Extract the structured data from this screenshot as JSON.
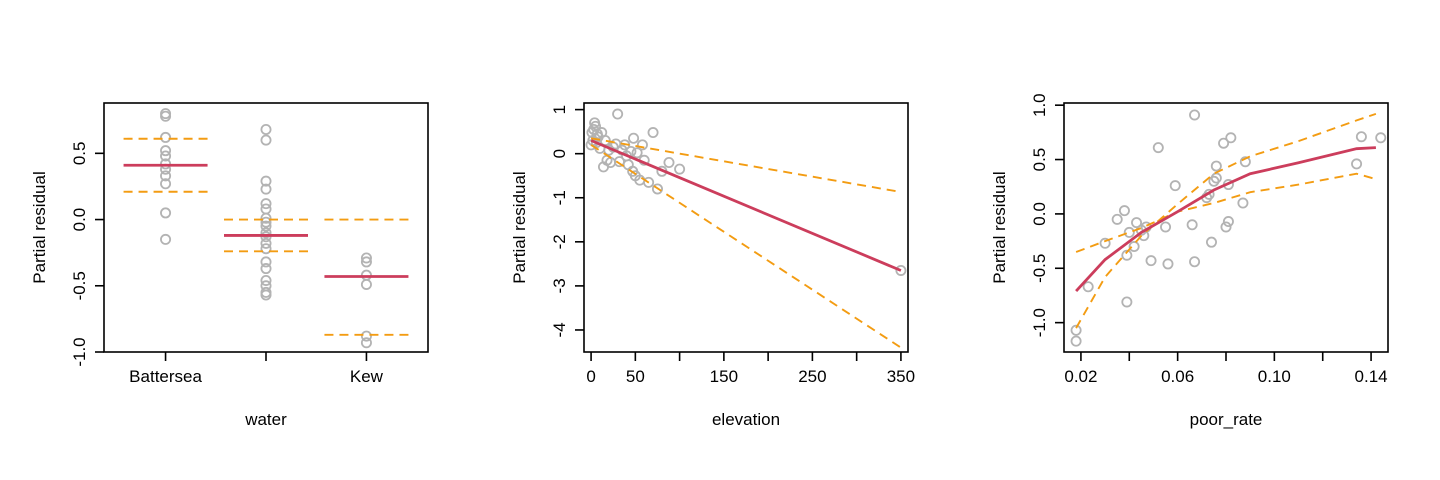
{
  "chart_data": [
    {
      "type": "scatter",
      "subtype": "categorical-partial-residual",
      "xlabel": "water",
      "ylabel": "Partial residual",
      "categories": [
        "Battersea",
        "",
        "Kew"
      ],
      "x_tick_labels": [
        "Battersea",
        "",
        "Kew"
      ],
      "ylim": [
        -1.0,
        0.88
      ],
      "y_ticks": [
        -1.0,
        -0.5,
        0.0,
        0.5
      ],
      "y_tick_labels": [
        "-1.0",
        "-0.5",
        "0.0",
        "0.5"
      ],
      "fit": [
        0.41,
        -0.12,
        -0.43
      ],
      "lower": [
        0.21,
        -0.24,
        -0.87
      ],
      "upper": [
        0.61,
        0.0,
        0.0
      ],
      "points": [
        [
          0.8,
          0.78,
          0.62,
          0.52,
          0.48,
          0.42,
          0.38,
          0.33,
          0.27,
          0.05,
          -0.15
        ],
        [
          0.68,
          0.6,
          0.29,
          0.23,
          0.12,
          0.08,
          0.01,
          -0.02,
          -0.05,
          -0.1,
          -0.13,
          -0.18,
          -0.22,
          -0.32,
          -0.37,
          -0.46,
          -0.5,
          -0.55,
          -0.57
        ],
        [
          -0.29,
          -0.32,
          -0.42,
          -0.49,
          -0.88,
          -0.93
        ]
      ],
      "grid": false
    },
    {
      "type": "scatter",
      "xlabel": "elevation",
      "ylabel": "Partial residual",
      "xlim": [
        -8,
        358
      ],
      "ylim": [
        -4.5,
        1.15
      ],
      "x_ticks": [
        0,
        50,
        100,
        150,
        200,
        250,
        300,
        350
      ],
      "x_tick_labels": [
        "0",
        "50",
        "",
        "150",
        "",
        "250",
        "",
        "350"
      ],
      "y_ticks": [
        -4,
        -3,
        -2,
        -1,
        0,
        1
      ],
      "y_tick_labels": [
        "-4",
        "-3",
        "-2",
        "-1",
        "0",
        "1"
      ],
      "points": [
        [
          0,
          0.2
        ],
        [
          1,
          0.48
        ],
        [
          2,
          0.3
        ],
        [
          3,
          0.55
        ],
        [
          4,
          0.7
        ],
        [
          5,
          0.62
        ],
        [
          6,
          0.25
        ],
        [
          7,
          0.45
        ],
        [
          8,
          0.38
        ],
        [
          10,
          0.12
        ],
        [
          12,
          0.48
        ],
        [
          14,
          -0.3
        ],
        [
          16,
          0.3
        ],
        [
          18,
          -0.15
        ],
        [
          20,
          0.08
        ],
        [
          22,
          -0.2
        ],
        [
          25,
          0.15
        ],
        [
          28,
          0.22
        ],
        [
          30,
          0.9
        ],
        [
          32,
          -0.18
        ],
        [
          35,
          0.08
        ],
        [
          38,
          0.2
        ],
        [
          40,
          -0.05
        ],
        [
          42,
          -0.25
        ],
        [
          45,
          0.05
        ],
        [
          47,
          -0.4
        ],
        [
          48,
          0.35
        ],
        [
          50,
          -0.5
        ],
        [
          52,
          0.02
        ],
        [
          55,
          -0.6
        ],
        [
          58,
          0.2
        ],
        [
          60,
          -0.15
        ],
        [
          65,
          -0.65
        ],
        [
          70,
          0.48
        ],
        [
          75,
          -0.8
        ],
        [
          80,
          -0.4
        ],
        [
          88,
          -0.2
        ],
        [
          100,
          -0.35
        ],
        [
          350,
          -2.65
        ]
      ],
      "fit": [
        [
          0,
          0.3
        ],
        [
          350,
          -2.65
        ]
      ],
      "lower": [
        [
          0,
          0.2
        ],
        [
          350,
          -4.4
        ]
      ],
      "upper": [
        [
          0,
          0.35
        ],
        [
          350,
          -0.87
        ]
      ],
      "grid": false
    },
    {
      "type": "scatter",
      "xlabel": "poor_rate",
      "ylabel": "Partial residual",
      "xlim": [
        0.013,
        0.147
      ],
      "ylim": [
        -1.27,
        1.02
      ],
      "x_ticks": [
        0.02,
        0.04,
        0.06,
        0.08,
        0.1,
        0.12,
        0.14
      ],
      "x_tick_labels": [
        "0.02",
        "",
        "0.06",
        "",
        "0.10",
        "",
        "0.14"
      ],
      "y_ticks": [
        -1.0,
        -0.5,
        0.0,
        0.5,
        1.0
      ],
      "y_tick_labels": [
        "-1.0",
        "-0.5",
        "0.0",
        "0.5",
        "1.0"
      ],
      "points": [
        [
          0.018,
          -1.07
        ],
        [
          0.018,
          -1.17
        ],
        [
          0.023,
          -0.67
        ],
        [
          0.03,
          -0.27
        ],
        [
          0.035,
          -0.05
        ],
        [
          0.038,
          0.03
        ],
        [
          0.039,
          -0.38
        ],
        [
          0.039,
          -0.81
        ],
        [
          0.04,
          -0.17
        ],
        [
          0.042,
          -0.3
        ],
        [
          0.043,
          -0.08
        ],
        [
          0.045,
          -0.15
        ],
        [
          0.046,
          -0.2
        ],
        [
          0.047,
          -0.12
        ],
        [
          0.049,
          -0.43
        ],
        [
          0.052,
          0.61
        ],
        [
          0.055,
          -0.12
        ],
        [
          0.056,
          -0.46
        ],
        [
          0.059,
          0.26
        ],
        [
          0.066,
          -0.1
        ],
        [
          0.067,
          -0.44
        ],
        [
          0.067,
          0.91
        ],
        [
          0.072,
          0.15
        ],
        [
          0.073,
          0.18
        ],
        [
          0.074,
          -0.26
        ],
        [
          0.075,
          0.3
        ],
        [
          0.076,
          0.44
        ],
        [
          0.076,
          0.33
        ],
        [
          0.079,
          0.65
        ],
        [
          0.08,
          -0.12
        ],
        [
          0.081,
          0.27
        ],
        [
          0.081,
          -0.07
        ],
        [
          0.082,
          0.7
        ],
        [
          0.087,
          0.1
        ],
        [
          0.088,
          0.48
        ],
        [
          0.134,
          0.46
        ],
        [
          0.136,
          0.71
        ],
        [
          0.144,
          0.7
        ]
      ],
      "fit": [
        [
          0.018,
          -0.71
        ],
        [
          0.03,
          -0.42
        ],
        [
          0.045,
          -0.17
        ],
        [
          0.06,
          0.02
        ],
        [
          0.075,
          0.22
        ],
        [
          0.09,
          0.37
        ],
        [
          0.11,
          0.47
        ],
        [
          0.134,
          0.6
        ],
        [
          0.142,
          0.61
        ]
      ],
      "lower": [
        [
          0.018,
          -0.35
        ],
        [
          0.03,
          -0.25
        ],
        [
          0.045,
          -0.13
        ],
        [
          0.06,
          0.02
        ],
        [
          0.075,
          0.1
        ],
        [
          0.09,
          0.2
        ],
        [
          0.11,
          0.27
        ],
        [
          0.134,
          0.37
        ],
        [
          0.142,
          0.32
        ]
      ],
      "upper": [
        [
          0.018,
          -1.05
        ],
        [
          0.03,
          -0.58
        ],
        [
          0.045,
          -0.2
        ],
        [
          0.06,
          0.09
        ],
        [
          0.075,
          0.37
        ],
        [
          0.09,
          0.53
        ],
        [
          0.11,
          0.67
        ],
        [
          0.134,
          0.86
        ],
        [
          0.142,
          0.92
        ]
      ],
      "grid": false
    }
  ],
  "colors": {
    "points": "#b3b3b3",
    "fit": "#cc3d5c",
    "bands": "#f39c12",
    "axes": "#000000"
  }
}
